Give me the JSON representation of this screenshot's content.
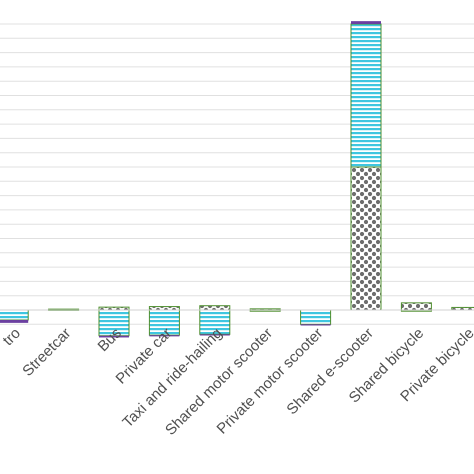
{
  "chart_data": {
    "type": "bar",
    "stacked": true,
    "title": "",
    "xlabel": "",
    "ylabel": "",
    "ylim": [
      -0.06,
      1.0
    ],
    "grid": "horizontal",
    "legend": "none",
    "categories": [
      "Metro",
      "Streetcar",
      "Bus",
      "Private car",
      "Taxi and ride-hailing",
      "Shared motor scooter",
      "Private motor scooter",
      "Shared e-scooter",
      "Shared bicycle",
      "Private bicycle"
    ],
    "visible_tick_labels": [
      "tro",
      "Streetcar",
      "Bus",
      "Private car",
      "Taxi and ride-hailing",
      "Shared motor scooter",
      "Private motor scooter",
      "Shared e-scooter",
      "Shared bicycle",
      "Private bicycle"
    ],
    "series": [
      {
        "values": [
          0.0,
          0.0,
          0.01,
          0.012,
          0.015,
          0.004,
          0.0,
          0.5,
          0.025,
          0.009
        ],
        "pattern": "dots",
        "color": "#7f7f7f"
      },
      {
        "values": [
          -0.035,
          0.003,
          -0.09,
          -0.088,
          -0.085,
          -0.001,
          -0.05,
          0.5,
          -0.003,
          0.0
        ],
        "pattern": "hlines",
        "color": "#3fc6e0"
      },
      {
        "values": [
          -0.01,
          0.0,
          -0.006,
          -0.004,
          -0.003,
          0.0,
          -0.002,
          0.01,
          0.0,
          0.0
        ],
        "pattern": "solid",
        "color": "#6b3fa0"
      }
    ],
    "colors": {
      "grid": "#e0e0e0",
      "bar_border": "#4e8f2e",
      "label": "#505050"
    }
  }
}
